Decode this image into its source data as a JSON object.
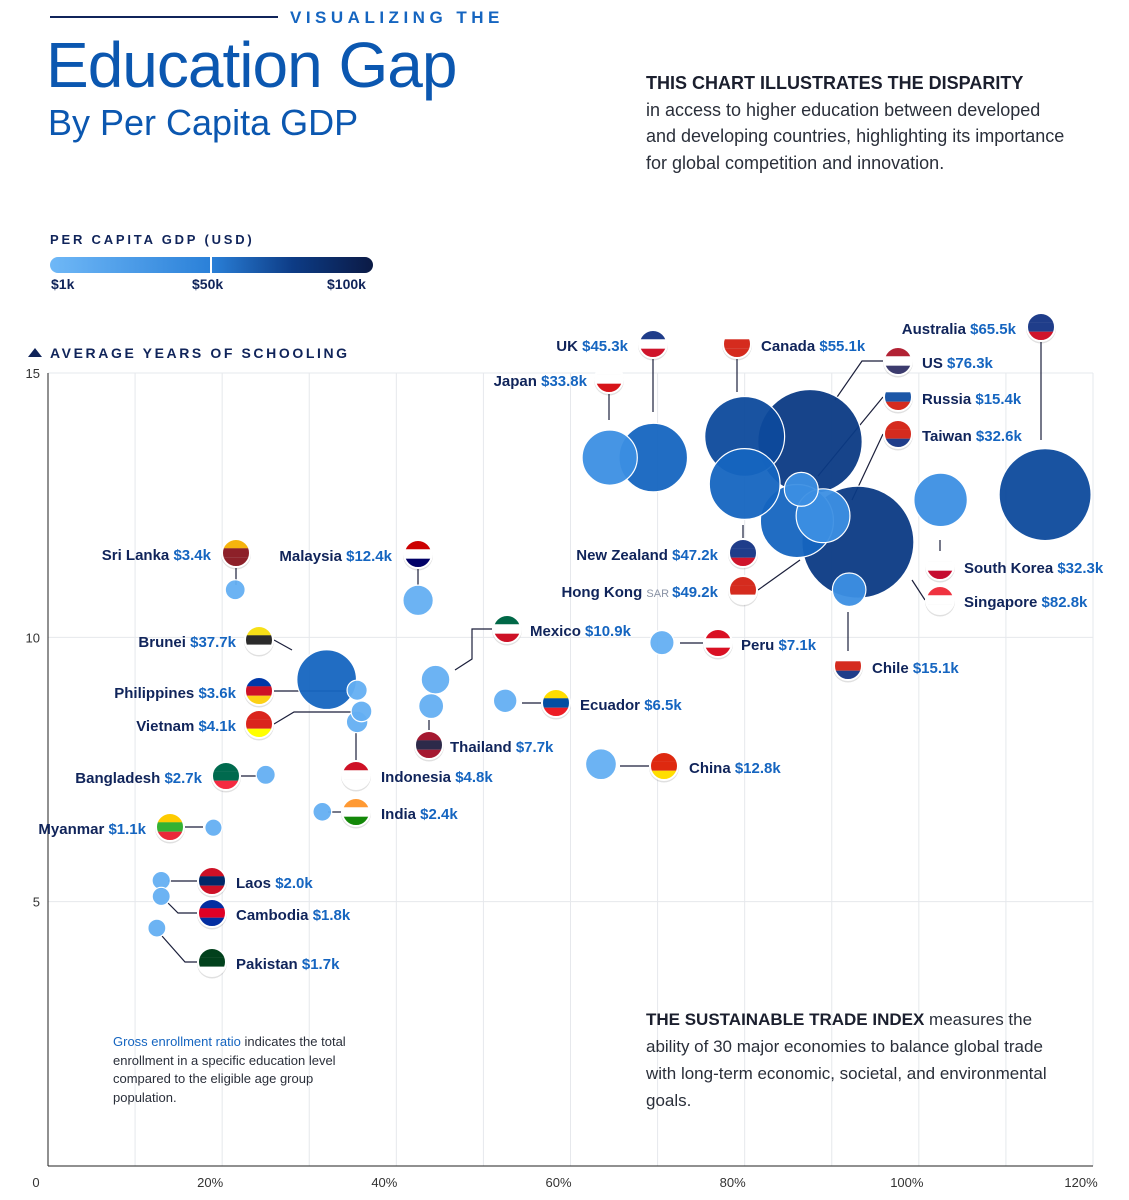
{
  "header": {
    "kicker": "VISUALIZING THE",
    "title": "Education Gap",
    "subtitle": "By Per Capita GDP"
  },
  "intro": {
    "bold": "THIS CHART ILLUSTRATES THE DISPARITY",
    "text": "in access to higher education between developed and developing countries, highlighting its importance for global competition and innovation."
  },
  "legend": {
    "title": "PER CAPITA GDP (USD)",
    "ticks": [
      "$1k",
      "$50k",
      "$100k"
    ],
    "colors": [
      "#6fb8f7",
      "#2a80d8",
      "#0d3c86",
      "#0b1a45"
    ]
  },
  "colors": {
    "light": "#64aff2",
    "mid": "#3c8fe3",
    "dark": "#1565c0",
    "darker": "#0d4a9c",
    "darkest": "#0b3a84",
    "label": "#10245a",
    "value": "#1565c0",
    "grid": "#e6e8ec"
  },
  "note": {
    "highlight": "Gross enrollment ratio",
    "text": "indicates the total enrollment in a specific education level compared to the eligible age group population."
  },
  "trade_note": {
    "bold": "THE SUSTAINABLE TRADE INDEX",
    "text": "measures the ability of 30 major economies to balance global trade with long-term economic, societal, and environmental goals."
  },
  "chart_data": {
    "type": "scatter",
    "title": "Education Gap By Per Capita GDP",
    "xlabel": "Gross enrollment ratio",
    "ylabel": "AVERAGE YEARS OF SCHOOLING",
    "xlim": [
      0,
      120
    ],
    "ylim": [
      0,
      15
    ],
    "x_ticks": [
      "0",
      "20%",
      "40%",
      "60%",
      "80%",
      "100%",
      "120%"
    ],
    "y_ticks": [
      "5",
      "10",
      "15"
    ],
    "size_variable": "Per capita GDP (USD, thousands)",
    "points": [
      {
        "name": "Japan",
        "value": "$33.8k",
        "gdp_k": 33.8,
        "x": 64.5,
        "y": 13.4
      },
      {
        "name": "UK",
        "value": "$45.3k",
        "gdp_k": 45.3,
        "x": 69.5,
        "y": 13.4
      },
      {
        "name": "Canada",
        "value": "$55.1k",
        "gdp_k": 55.1,
        "x": 80.0,
        "y": 13.8
      },
      {
        "name": "US",
        "value": "$76.3k",
        "gdp_k": 76.3,
        "x": 87.5,
        "y": 13.7
      },
      {
        "name": "Australia",
        "value": "$65.5k",
        "gdp_k": 65.5,
        "x": 114.5,
        "y": 12.7
      },
      {
        "name": "Russia",
        "value": "$15.4k",
        "gdp_k": 15.4,
        "x": 86.5,
        "y": 12.8
      },
      {
        "name": "Taiwan",
        "value": "$32.6k",
        "gdp_k": 32.6,
        "x": 89.0,
        "y": 12.3
      },
      {
        "name": "New Zealand",
        "value": "$47.2k",
        "gdp_k": 47.2,
        "x": 80.0,
        "y": 12.9
      },
      {
        "name": "Hong Kong",
        "region_tag": "SAR",
        "value": "$49.2k",
        "gdp_k": 49.2,
        "x": 86.0,
        "y": 12.2
      },
      {
        "name": "South Korea",
        "value": "$32.3k",
        "gdp_k": 32.3,
        "x": 102.5,
        "y": 12.6
      },
      {
        "name": "Singapore",
        "value": "$82.8k",
        "gdp_k": 82.8,
        "x": 93.0,
        "y": 11.8
      },
      {
        "name": "Chile",
        "value": "$15.1k",
        "gdp_k": 15.1,
        "x": 92.0,
        "y": 10.9
      },
      {
        "name": "Peru",
        "value": "$7.1k",
        "gdp_k": 7.1,
        "x": 70.5,
        "y": 9.9
      },
      {
        "name": "Mexico",
        "value": "$10.9k",
        "gdp_k": 10.9,
        "x": 44.5,
        "y": 9.2
      },
      {
        "name": "Ecuador",
        "value": "$6.5k",
        "gdp_k": 6.5,
        "x": 52.5,
        "y": 8.8
      },
      {
        "name": "Thailand",
        "value": "$7.7k",
        "gdp_k": 7.7,
        "x": 44.0,
        "y": 8.7
      },
      {
        "name": "China",
        "value": "$12.8k",
        "gdp_k": 12.8,
        "x": 63.5,
        "y": 7.6
      },
      {
        "name": "Malaysia",
        "value": "$12.4k",
        "gdp_k": 12.4,
        "x": 42.5,
        "y": 10.7
      },
      {
        "name": "Sri Lanka",
        "value": "$3.4k",
        "gdp_k": 3.4,
        "x": 21.5,
        "y": 10.9
      },
      {
        "name": "Brunei",
        "value": "$37.7k",
        "gdp_k": 37.7,
        "x": 32.0,
        "y": 9.2
      },
      {
        "name": "Philippines",
        "value": "$3.6k",
        "gdp_k": 3.6,
        "x": 35.5,
        "y": 9.0
      },
      {
        "name": "Vietnam",
        "value": "$4.1k",
        "gdp_k": 4.1,
        "x": 36.0,
        "y": 8.6
      },
      {
        "name": "Indonesia",
        "value": "$4.8k",
        "gdp_k": 4.8,
        "x": 35.5,
        "y": 8.4
      },
      {
        "name": "Bangladesh",
        "value": "$2.7k",
        "gdp_k": 2.7,
        "x": 25.0,
        "y": 7.4
      },
      {
        "name": "India",
        "value": "$2.4k",
        "gdp_k": 2.4,
        "x": 31.5,
        "y": 6.7
      },
      {
        "name": "Myanmar",
        "value": "$1.1k",
        "gdp_k": 1.1,
        "x": 19.0,
        "y": 6.4
      },
      {
        "name": "Laos",
        "value": "$2.0k",
        "gdp_k": 2.0,
        "x": 13.0,
        "y": 5.4
      },
      {
        "name": "Cambodia",
        "value": "$1.8k",
        "gdp_k": 1.8,
        "x": 13.0,
        "y": 5.1
      },
      {
        "name": "Pakistan",
        "value": "$1.7k",
        "gdp_k": 1.7,
        "x": 12.5,
        "y": 4.5
      }
    ]
  }
}
